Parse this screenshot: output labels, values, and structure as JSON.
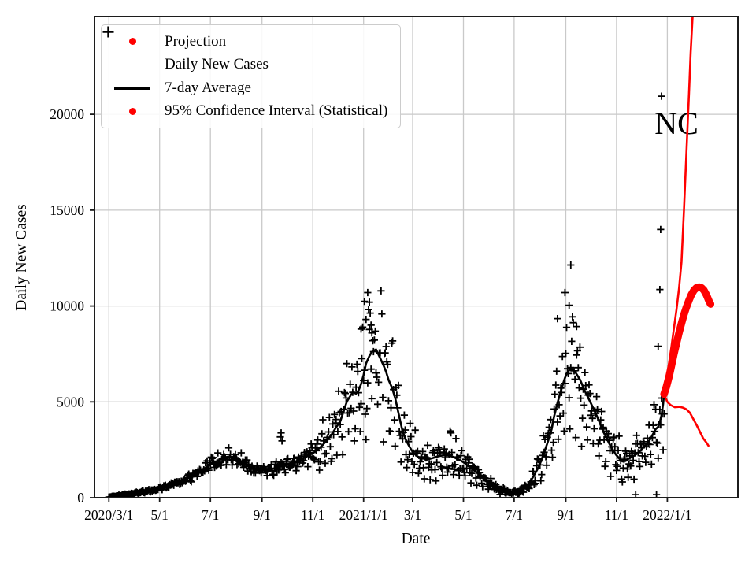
{
  "chart_data": {
    "type": "line+scatter",
    "title": "",
    "xlabel": "Date",
    "ylabel": "Daily New Cases",
    "annotation": {
      "text": "NC",
      "day": 682,
      "value": 19600
    },
    "grid": {
      "show": true,
      "color": "#c9c9c9"
    },
    "colors": {
      "scatter": "#000000",
      "average": "#000000",
      "projection": "#ff0000",
      "confidence": "#ff0000",
      "spine": "#1c1c1c",
      "background": "#ffffff"
    },
    "legend": {
      "position": "upper left",
      "entries": [
        {
          "label": "Projection",
          "marker": "dot",
          "color": "#ff0000"
        },
        {
          "label": "Daily New Cases",
          "marker": "plus",
          "color": "#000000"
        },
        {
          "label": "7-day Average",
          "marker": "line",
          "color": "#000000"
        },
        {
          "label": "95% Confidence Interval (Statistical)",
          "marker": "dot",
          "color": "#ff0000"
        }
      ]
    },
    "x_axis": {
      "label": "Date",
      "day0_date": "2020/3/1",
      "tick_days": [
        0,
        61,
        122,
        184,
        245,
        306,
        365,
        426,
        487,
        549,
        610,
        671
      ],
      "tick_labels": [
        "2020/3/1",
        "5/1",
        "7/1",
        "9/1",
        "11/1",
        "2021/1/1",
        "3/1",
        "5/1",
        "7/1",
        "9/1",
        "11/1",
        "2022/1/1"
      ],
      "xlim_days": [
        -17.3,
        755.8
      ]
    },
    "y_axis": {
      "label": "Daily New Cases",
      "ticks": [
        0,
        5000,
        10000,
        15000,
        20000
      ],
      "tick_labels": [
        "0",
        "5000",
        "10000",
        "15000",
        "20000"
      ],
      "ylim": [
        0,
        25100
      ]
    },
    "series": {
      "seven_day_average": {
        "label": "7-day Average",
        "color": "#000000",
        "linewidth": 2.6,
        "points_day_value": [
          [
            0,
            40
          ],
          [
            10,
            90
          ],
          [
            20,
            165
          ],
          [
            30,
            230
          ],
          [
            40,
            300
          ],
          [
            50,
            370
          ],
          [
            58,
            450
          ],
          [
            68,
            560
          ],
          [
            77,
            700
          ],
          [
            87,
            860
          ],
          [
            96,
            1030
          ],
          [
            106,
            1280
          ],
          [
            115,
            1520
          ],
          [
            122,
            1750
          ],
          [
            129,
            1890
          ],
          [
            136,
            2040
          ],
          [
            143,
            2140
          ],
          [
            150,
            2090
          ],
          [
            158,
            1900
          ],
          [
            167,
            1650
          ],
          [
            174,
            1560
          ],
          [
            181,
            1480
          ],
          [
            191,
            1400
          ],
          [
            198,
            1520
          ],
          [
            205,
            1650
          ],
          [
            212,
            1730
          ],
          [
            219,
            1810
          ],
          [
            227,
            1930
          ],
          [
            234,
            2060
          ],
          [
            240,
            2200
          ],
          [
            246,
            2345
          ],
          [
            252,
            2550
          ],
          [
            257,
            2755
          ],
          [
            262,
            3000
          ],
          [
            267,
            3250
          ],
          [
            272,
            3600
          ],
          [
            278,
            3990
          ],
          [
            282,
            4500
          ],
          [
            286,
            5020
          ],
          [
            290,
            5300
          ],
          [
            293,
            5510
          ],
          [
            297,
            5430
          ],
          [
            300,
            5600
          ],
          [
            303,
            5925
          ],
          [
            306,
            6400
          ],
          [
            309,
            7000
          ],
          [
            313,
            7400
          ],
          [
            316,
            7610
          ],
          [
            321,
            7735
          ],
          [
            326,
            7280
          ],
          [
            330,
            6900
          ],
          [
            333,
            6580
          ],
          [
            336,
            6150
          ],
          [
            340,
            5760
          ],
          [
            344,
            5200
          ],
          [
            347,
            4610
          ],
          [
            350,
            4000
          ],
          [
            353,
            3455
          ],
          [
            357,
            3000
          ],
          [
            361,
            2675
          ],
          [
            364,
            2450
          ],
          [
            368,
            2260
          ],
          [
            371,
            2150
          ],
          [
            375,
            2060
          ],
          [
            380,
            2030
          ],
          [
            385,
            2015
          ],
          [
            390,
            2080
          ],
          [
            394,
            2140
          ],
          [
            399,
            2190
          ],
          [
            404,
            2220
          ],
          [
            409,
            2180
          ],
          [
            413,
            2140
          ],
          [
            418,
            2040
          ],
          [
            423,
            1935
          ],
          [
            428,
            1790
          ],
          [
            432,
            1645
          ],
          [
            437,
            1480
          ],
          [
            442,
            1315
          ],
          [
            446,
            1150
          ],
          [
            451,
            985
          ],
          [
            456,
            840
          ],
          [
            461,
            700
          ],
          [
            465,
            570
          ],
          [
            470,
            450
          ],
          [
            475,
            360
          ],
          [
            480,
            290
          ],
          [
            486,
            245
          ],
          [
            490,
            280
          ],
          [
            494,
            330
          ],
          [
            498,
            440
          ],
          [
            501,
            575
          ],
          [
            505,
            790
          ],
          [
            509,
            1030
          ],
          [
            513,
            1330
          ],
          [
            517,
            1645
          ],
          [
            520,
            2000
          ],
          [
            524,
            2470
          ],
          [
            528,
            3000
          ],
          [
            532,
            3580
          ],
          [
            535,
            4250
          ],
          [
            539,
            4940
          ],
          [
            542,
            5400
          ],
          [
            545,
            5840
          ],
          [
            548,
            6250
          ],
          [
            551,
            6540
          ],
          [
            555,
            6750
          ],
          [
            560,
            6580
          ],
          [
            566,
            6170
          ],
          [
            572,
            5555
          ],
          [
            579,
            4940
          ],
          [
            587,
            4200
          ],
          [
            594,
            3455
          ],
          [
            602,
            2755
          ],
          [
            609,
            2260
          ],
          [
            613,
            2060
          ],
          [
            617,
            1890
          ],
          [
            621,
            1920
          ],
          [
            624,
            2015
          ],
          [
            628,
            2120
          ],
          [
            632,
            2220
          ],
          [
            636,
            2340
          ],
          [
            639,
            2470
          ],
          [
            643,
            2650
          ],
          [
            647,
            2840
          ],
          [
            651,
            3080
          ],
          [
            654,
            3330
          ],
          [
            657,
            3580
          ],
          [
            660,
            3700
          ],
          [
            662,
            3950
          ],
          [
            664,
            4300
          ],
          [
            666,
            4900
          ],
          [
            667,
            5400
          ]
        ]
      },
      "projection": {
        "label": "Projection",
        "color": "#ff0000",
        "style": "thick-dotted",
        "linewidth": 9.5,
        "points_day_value": [
          [
            667,
            5400
          ],
          [
            670,
            5800
          ],
          [
            673,
            6300
          ],
          [
            676,
            6900
          ],
          [
            679,
            7500
          ],
          [
            682,
            8050
          ],
          [
            685,
            8600
          ],
          [
            688,
            9100
          ],
          [
            691,
            9550
          ],
          [
            694,
            9950
          ],
          [
            697,
            10300
          ],
          [
            700,
            10600
          ],
          [
            703,
            10820
          ],
          [
            706,
            10950
          ],
          [
            709,
            10990
          ],
          [
            712,
            10950
          ],
          [
            715,
            10820
          ],
          [
            718,
            10580
          ],
          [
            721,
            10270
          ],
          [
            723,
            10100
          ]
        ]
      },
      "ci_upper": {
        "label": "95% Confidence Interval (Statistical)",
        "color": "#ff0000",
        "linewidth": 2.6,
        "points_day_value": [
          [
            667,
            5400
          ],
          [
            670,
            6100
          ],
          [
            673,
            7000
          ],
          [
            676,
            7900
          ],
          [
            679,
            8850
          ],
          [
            682,
            9800
          ],
          [
            685,
            10900
          ],
          [
            688,
            12300
          ],
          [
            691,
            15000
          ],
          [
            693,
            17000
          ],
          [
            695,
            19000
          ],
          [
            697,
            21070
          ],
          [
            699,
            23200
          ],
          [
            701,
            24800
          ],
          [
            702,
            25600
          ]
        ]
      },
      "ci_lower": {
        "label": "95% Confidence Interval (Statistical)",
        "color": "#ff0000",
        "linewidth": 2.6,
        "points_day_value": [
          [
            667,
            5400
          ],
          [
            671,
            5000
          ],
          [
            675,
            4830
          ],
          [
            680,
            4720
          ],
          [
            686,
            4740
          ],
          [
            690,
            4690
          ],
          [
            694,
            4610
          ],
          [
            698,
            4440
          ],
          [
            701,
            4200
          ],
          [
            706,
            3800
          ],
          [
            710,
            3460
          ],
          [
            714,
            3100
          ],
          [
            718,
            2870
          ],
          [
            721,
            2675
          ]
        ]
      },
      "daily_new_cases": {
        "label": "Daily New Cases",
        "marker": "plus",
        "color": "#000000",
        "notable_points_day_value": [
          [
            206,
            3170
          ],
          [
            207,
            3380
          ],
          [
            208,
            2960
          ],
          [
            303,
            8800
          ],
          [
            307,
            10240
          ],
          [
            309,
            9300
          ],
          [
            311,
            10700
          ],
          [
            313,
            10200
          ],
          [
            315,
            9000
          ],
          [
            316,
            8600
          ],
          [
            539,
            9340
          ],
          [
            548,
            10700
          ],
          [
            553,
            10040
          ],
          [
            555,
            12140
          ],
          [
            562,
            8930
          ],
          [
            633,
            160
          ],
          [
            658,
            160
          ],
          [
            660,
            7900
          ],
          [
            662,
            10860
          ],
          [
            663,
            13990
          ],
          [
            664,
            20945
          ]
        ],
        "scatter_model": {
          "seed": 42,
          "day_range": [
            0,
            667
          ],
          "eras": [
            {
              "until_day": 250,
              "weekday_factors": [
                0.95,
                0.85,
                0.92,
                1.0,
                1.06,
                1.1,
                1.02
              ],
              "noise": 0.13
            },
            {
              "until_day": 668,
              "weekday_factors": [
                0.8,
                0.55,
                0.85,
                1.05,
                1.15,
                1.18,
                1.05
              ],
              "noise": 0.27
            }
          ]
        }
      }
    }
  }
}
